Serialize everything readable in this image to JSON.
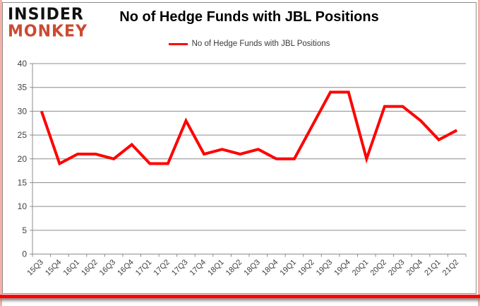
{
  "branding": {
    "logo_line1": "INSIDER",
    "logo_line2": "MONKEY"
  },
  "header": {
    "title": "No of Hedge Funds with JBL Positions"
  },
  "legend": {
    "label": "No of Hedge Funds with JBL Positions"
  },
  "colors": {
    "line": "#ff0000",
    "grid": "#8c8c8c",
    "axis_text": "#3f3f3f",
    "bottom_bar": "#ff0000",
    "side_border": "#f5b0a8",
    "logo_accent": "#cc4a31"
  },
  "chart_data": {
    "type": "line",
    "title": "No of Hedge Funds with JBL Positions",
    "categories": [
      "15Q3",
      "15Q4",
      "16Q1",
      "16Q2",
      "16Q3",
      "16Q4",
      "17Q1",
      "17Q2",
      "17Q3",
      "17Q4",
      "18Q1",
      "18Q2",
      "18Q3",
      "18Q4",
      "19Q1",
      "19Q2",
      "19Q3",
      "19Q4",
      "20Q1",
      "20Q2",
      "20Q3",
      "20Q4",
      "21Q1",
      "21Q2"
    ],
    "series": [
      {
        "name": "No of Hedge Funds with JBL Positions",
        "color": "#ff0000",
        "values": [
          30,
          19,
          21,
          21,
          20,
          23,
          19,
          19,
          28,
          21,
          22,
          21,
          22,
          20,
          20,
          27,
          34,
          34,
          20,
          31,
          31,
          28,
          24,
          26
        ]
      }
    ],
    "xlabel": "",
    "ylabel": "",
    "ylim": [
      0,
      40
    ],
    "ytick_step": 5,
    "grid": true,
    "legend_position": "top-center"
  }
}
